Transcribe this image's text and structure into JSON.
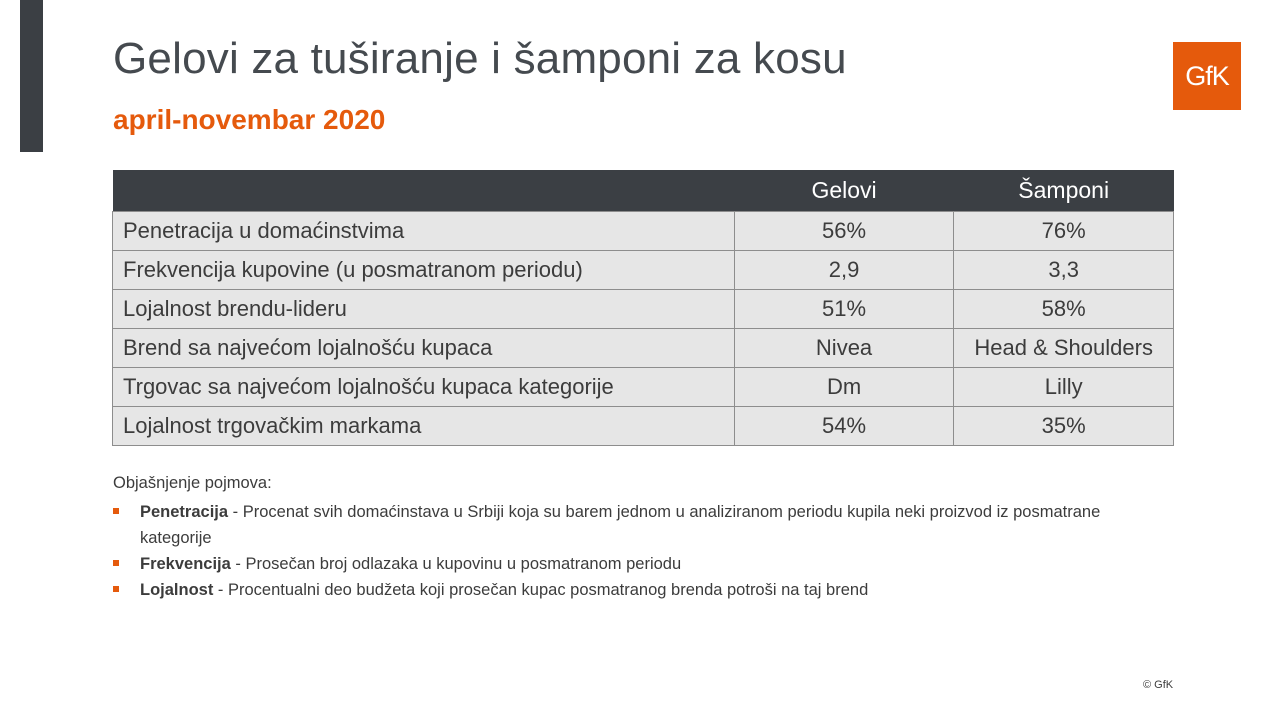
{
  "header": {
    "title": "Gelovi za tuširanje i šamponi za kosu",
    "subtitle": "april-novembar 2020",
    "logo_text": "GfK"
  },
  "table": {
    "columns": [
      "Gelovi",
      "Šamponi"
    ],
    "rows": [
      {
        "label": "Penetracija u domaćinstvima",
        "gelovi": "56%",
        "samponi": "76%"
      },
      {
        "label": "Frekvencija kupovine (u posmatranom periodu)",
        "gelovi": "2,9",
        "samponi": "3,3"
      },
      {
        "label": "Lojalnost brendu-lideru",
        "gelovi": "51%",
        "samponi": "58%"
      },
      {
        "label": "Brend sa najvećom lojalnošću kupaca",
        "gelovi": "Nivea",
        "samponi": "Head & Shoulders"
      },
      {
        "label": "Trgovac sa najvećom lojalnošću kupaca kategorije",
        "gelovi": "Dm",
        "samponi": "Lilly"
      },
      {
        "label": "Lojalnost trgovačkim markama",
        "gelovi": "54%",
        "samponi": "35%"
      }
    ]
  },
  "notes": {
    "heading": "Objašnjenje pojmova:",
    "items": [
      {
        "term": "Penetracija",
        "text": " - Procenat svih domaćinstava u Srbiji koja su barem jednom u analiziranom periodu kupila neki proizvod iz posmatrane kategorije"
      },
      {
        "term": "Frekvencija",
        "text": " - Prosečan broj odlazaka u kupovinu u posmatranom periodu"
      },
      {
        "term": "Lojalnost",
        "text": " - Procentualni deo budžeta koji prosečan kupac posmatranog brenda potroši na taj brend"
      }
    ]
  },
  "footer": {
    "copyright": "© GfK"
  },
  "colors": {
    "accent": "#e55a0c",
    "dark": "#3b3f44",
    "row_bg": "#e6e6e6"
  }
}
